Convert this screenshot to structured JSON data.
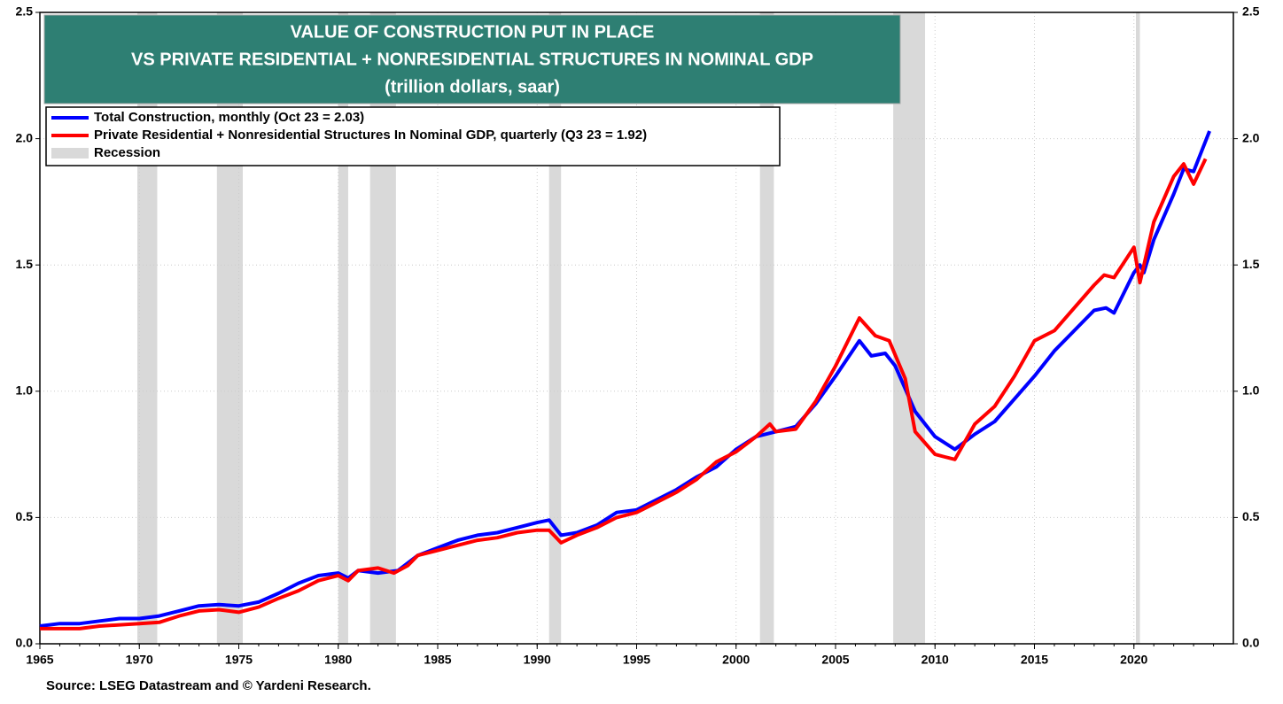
{
  "chart_data": {
    "type": "line",
    "title": [
      "VALUE OF CONSTRUCTION PUT IN PLACE",
      "VS PRIVATE RESIDENTIAL + NONRESIDENTIAL STRUCTURES  IN NOMINAL GDP",
      "(trillion dollars, saar)"
    ],
    "source": "Source: LSEG Datastream and © Yardeni Research.",
    "xlim": [
      1965,
      2025
    ],
    "xticks": [
      1965,
      1970,
      1975,
      1980,
      1985,
      1990,
      1995,
      2000,
      2005,
      2010,
      2015,
      2020
    ],
    "ylim": [
      0,
      2.5
    ],
    "yticks": [
      {
        "value": 0,
        "label": "0.0"
      },
      0.5,
      {
        "value": 1,
        "label": "1.0"
      },
      1.5,
      {
        "value": 2,
        "label": "2.0"
      },
      2.5
    ],
    "grid": true,
    "legend": "top-left",
    "recession": {
      "name": "Recession",
      "color": "#d9d9d9",
      "periods": [
        [
          1969.9,
          1970.9
        ],
        [
          1973.9,
          1975.2
        ],
        [
          1980.0,
          1980.5
        ],
        [
          1981.6,
          1982.9
        ],
        [
          1990.6,
          1991.2
        ],
        [
          2001.2,
          2001.9
        ],
        [
          2007.9,
          2009.5
        ],
        [
          2020.1,
          2020.3
        ]
      ]
    },
    "series": [
      {
        "name": "Total Construction, monthly (Oct 23 = 2.03)",
        "color": "#0000ff",
        "x": [
          1965,
          1966,
          1967,
          1968,
          1969,
          1970,
          1971,
          1972,
          1973,
          1974,
          1975,
          1976,
          1977,
          1978,
          1979,
          1980,
          1980.5,
          1981,
          1982,
          1983,
          1984,
          1985,
          1986,
          1987,
          1988,
          1989,
          1990,
          1990.6,
          1991.2,
          1992,
          1993,
          1994,
          1995,
          1996,
          1997,
          1998,
          1999,
          2000,
          2001,
          2002,
          2003,
          2004,
          2005,
          2006.2,
          2006.8,
          2007.5,
          2008,
          2009,
          2010,
          2011,
          2012,
          2013,
          2014,
          2015,
          2016,
          2017,
          2018,
          2018.6,
          2019,
          2020,
          2020.3,
          2020.5,
          2021,
          2022,
          2022.5,
          2023,
          2023.8
        ],
        "values": [
          0.07,
          0.08,
          0.08,
          0.09,
          0.1,
          0.1,
          0.11,
          0.13,
          0.15,
          0.155,
          0.15,
          0.165,
          0.2,
          0.24,
          0.27,
          0.28,
          0.26,
          0.29,
          0.28,
          0.29,
          0.35,
          0.38,
          0.41,
          0.43,
          0.44,
          0.46,
          0.48,
          0.49,
          0.43,
          0.44,
          0.47,
          0.52,
          0.53,
          0.57,
          0.61,
          0.66,
          0.7,
          0.77,
          0.82,
          0.84,
          0.86,
          0.95,
          1.06,
          1.2,
          1.14,
          1.15,
          1.1,
          0.92,
          0.82,
          0.77,
          0.83,
          0.88,
          0.97,
          1.06,
          1.16,
          1.24,
          1.32,
          1.33,
          1.31,
          1.47,
          1.5,
          1.47,
          1.6,
          1.78,
          1.88,
          1.87,
          2.03
        ]
      },
      {
        "name": "Private Residential + Nonresidential Structures In Nominal GDP, quarterly (Q3 23 = 1.92)",
        "color": "#ff0000",
        "x": [
          1965,
          1967,
          1968,
          1970,
          1971,
          1972,
          1973,
          1974,
          1975,
          1976,
          1977,
          1978,
          1979,
          1980,
          1980.5,
          1981,
          1982,
          1982.8,
          1983.5,
          1984,
          1985,
          1986,
          1987,
          1988,
          1989,
          1990,
          1990.6,
          1991.2,
          1992,
          1993,
          1994,
          1995,
          1996,
          1997,
          1998,
          1999,
          2000,
          2001,
          2001.7,
          2002,
          2003,
          2004,
          2005,
          2006.2,
          2007,
          2007.7,
          2008.5,
          2009,
          2010,
          2010.5,
          2011,
          2012,
          2013,
          2014,
          2015,
          2016,
          2017,
          2018,
          2018.5,
          2019,
          2020,
          2020.3,
          2021,
          2022,
          2022.5,
          2023,
          2023.6
        ],
        "values": [
          0.06,
          0.06,
          0.07,
          0.08,
          0.085,
          0.11,
          0.13,
          0.135,
          0.125,
          0.145,
          0.18,
          0.21,
          0.25,
          0.27,
          0.25,
          0.29,
          0.3,
          0.28,
          0.31,
          0.35,
          0.37,
          0.39,
          0.41,
          0.42,
          0.44,
          0.45,
          0.45,
          0.4,
          0.43,
          0.46,
          0.5,
          0.52,
          0.56,
          0.6,
          0.65,
          0.72,
          0.76,
          0.82,
          0.87,
          0.84,
          0.85,
          0.96,
          1.1,
          1.29,
          1.22,
          1.2,
          1.05,
          0.84,
          0.75,
          0.74,
          0.73,
          0.87,
          0.94,
          1.06,
          1.2,
          1.24,
          1.33,
          1.42,
          1.46,
          1.45,
          1.57,
          1.43,
          1.67,
          1.85,
          1.9,
          1.82,
          1.92
        ]
      }
    ]
  }
}
